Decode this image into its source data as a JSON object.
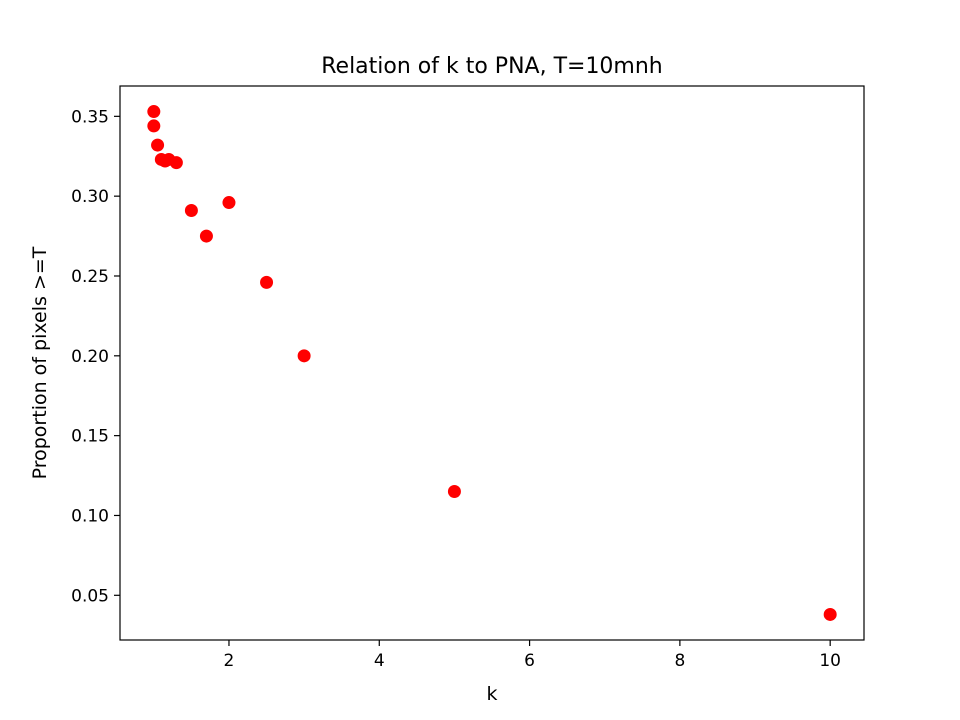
{
  "chart_data": {
    "type": "scatter",
    "title": "Relation of k to PNA, T=10mnh",
    "xlabel": "k",
    "ylabel": "Proportion of pixels >=T",
    "xlim": [
      0.55,
      10.45
    ],
    "ylim": [
      0.022,
      0.369
    ],
    "xticks": [
      2,
      4,
      6,
      8,
      10
    ],
    "xtick_labels": [
      "2",
      "4",
      "6",
      "8",
      "10"
    ],
    "yticks": [
      0.05,
      0.1,
      0.15,
      0.2,
      0.25,
      0.3,
      0.35
    ],
    "ytick_labels": [
      "0.05",
      "0.10",
      "0.15",
      "0.20",
      "0.25",
      "0.30",
      "0.35"
    ],
    "grid": false,
    "legend": "none",
    "marker_color": "#ff0000",
    "points": [
      {
        "x": 1.0,
        "y": 0.353
      },
      {
        "x": 1.0,
        "y": 0.344
      },
      {
        "x": 1.05,
        "y": 0.332
      },
      {
        "x": 1.1,
        "y": 0.323
      },
      {
        "x": 1.15,
        "y": 0.322
      },
      {
        "x": 1.2,
        "y": 0.323
      },
      {
        "x": 1.3,
        "y": 0.321
      },
      {
        "x": 1.5,
        "y": 0.291
      },
      {
        "x": 1.7,
        "y": 0.275
      },
      {
        "x": 2.0,
        "y": 0.296
      },
      {
        "x": 2.5,
        "y": 0.246
      },
      {
        "x": 3.0,
        "y": 0.2
      },
      {
        "x": 5.0,
        "y": 0.115
      },
      {
        "x": 10.0,
        "y": 0.038
      }
    ]
  }
}
